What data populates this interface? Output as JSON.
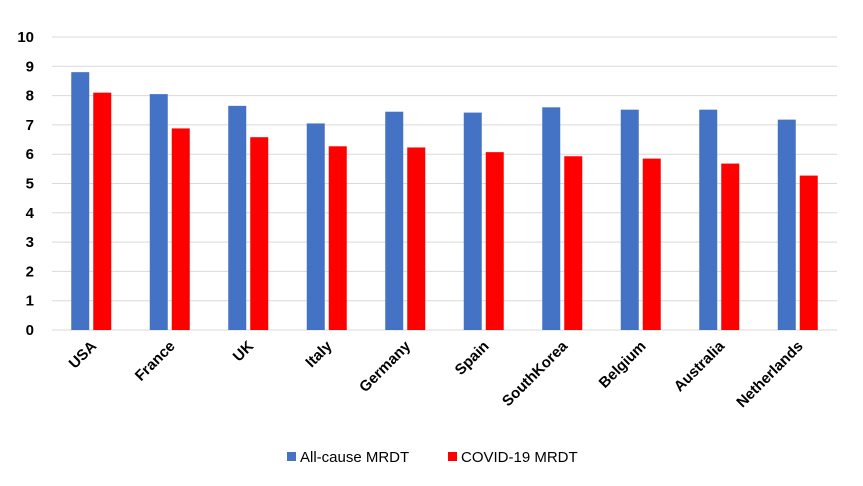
{
  "chart_data": {
    "type": "bar",
    "categories": [
      "USA",
      "France",
      "UK",
      "Italy",
      "Germany",
      "Spain",
      "SouthKorea",
      "Belgium",
      "Australia",
      "Netherlands"
    ],
    "series": [
      {
        "name": "All-cause MRDT",
        "color": "#4472c4",
        "values": [
          8.8,
          8.05,
          7.65,
          7.05,
          7.45,
          7.42,
          7.6,
          7.52,
          7.52,
          7.18
        ]
      },
      {
        "name": "COVID-19 MRDT",
        "color": "#ff0000",
        "values": [
          8.1,
          6.88,
          6.58,
          6.27,
          6.23,
          6.07,
          5.93,
          5.85,
          5.68,
          5.27
        ]
      }
    ],
    "ylim": [
      0,
      10
    ],
    "yticks": [
      0,
      1,
      2,
      3,
      4,
      5,
      6,
      7,
      8,
      9,
      10
    ],
    "grid": true,
    "legend_position": "bottom",
    "title": "",
    "xlabel": "",
    "ylabel": ""
  }
}
